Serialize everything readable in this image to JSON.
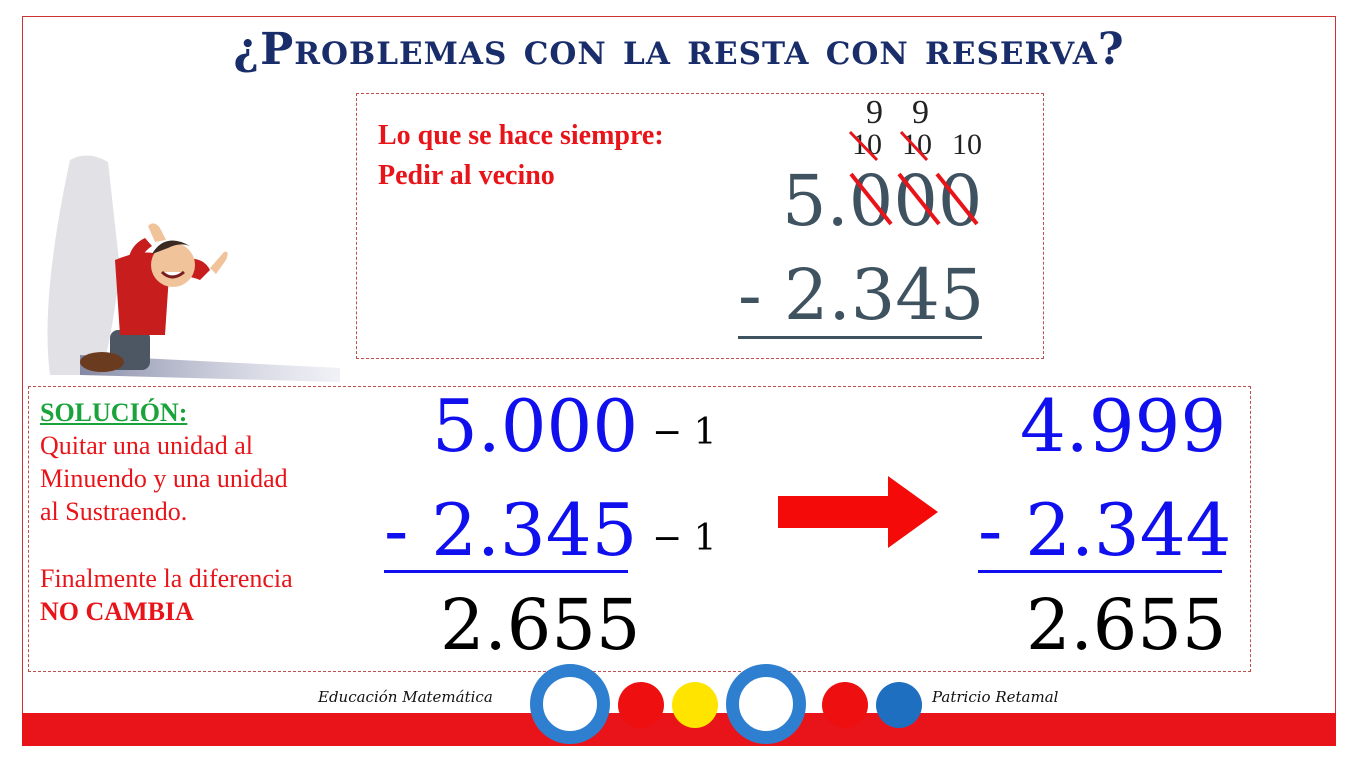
{
  "title": "¿Problemas con la resta con reserva?",
  "top_box": {
    "note_line1": "Lo que se hace siempre:",
    "note_line2": "Pedir al vecino",
    "borrow_top_1": "9",
    "borrow_top_2": "9",
    "borrow_mid_1": "10",
    "borrow_mid_2": "10",
    "borrow_mid_3": "10",
    "minuend": "5.000",
    "subtrahend": "- 2.345"
  },
  "solution": {
    "heading": "SOLUCIÓN:",
    "line1": "Quitar una unidad al",
    "line2": "Minuendo y una unidad",
    "line3": "al Sustraendo.",
    "line4": "Finalmente la diferencia",
    "line5": "NO CAMBIA",
    "left_minuend": "5.000",
    "left_subtrahend": "- 2.345",
    "left_result": "2.655",
    "minus_one_a": "− 1",
    "minus_one_b": "− 1",
    "right_minuend": "4.999",
    "right_subtrahend": "- 2.344",
    "right_result": "2.655"
  },
  "footer": {
    "left_text": "Educación Matemática",
    "right_text": "Patricio Retamal"
  },
  "colors": {
    "title": "#1a2d6b",
    "accent_red": "#e8141a",
    "number_blue": "#1010ee",
    "ring_blue": "#2e7fcf",
    "dot_yellow": "#ffe400"
  },
  "icons": [
    "person-kneeling-illustration",
    "right-arrow-icon"
  ]
}
